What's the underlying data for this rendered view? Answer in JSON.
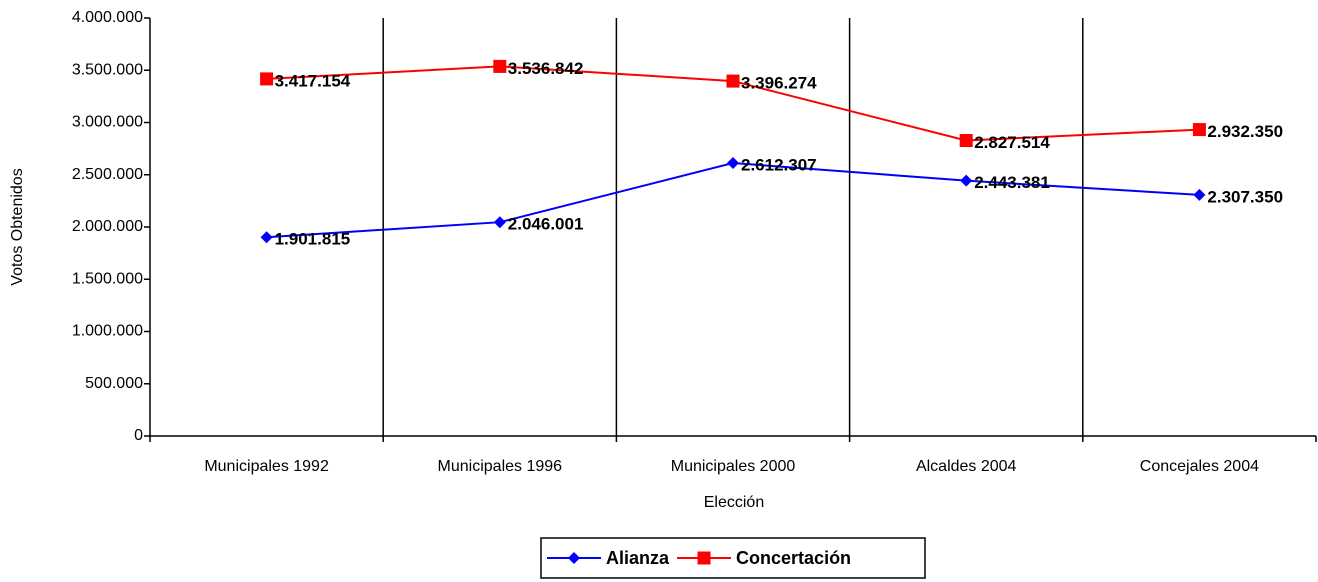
{
  "chart_data": {
    "type": "line",
    "x_label": "Elección",
    "y_label": "Votos Obtenidos",
    "categories": [
      "Municipales 1992",
      "Municipales 1996",
      "Municipales 2000",
      "Alcaldes 2004",
      "Concejales 2004"
    ],
    "series": [
      {
        "name": "Alianza",
        "color": "#0000ff",
        "marker": "diamond",
        "values": [
          1901815,
          2046001,
          2612307,
          2443381,
          2307350
        ],
        "value_labels": [
          "1.901.815",
          "2.046.001",
          "2.612.307",
          "2.443.381",
          "2.307.350"
        ]
      },
      {
        "name": "Concertación",
        "color": "#ff0000",
        "marker": "square",
        "values": [
          3417154,
          3536842,
          3396274,
          2827514,
          2932350
        ],
        "value_labels": [
          "3.417.154",
          "3.536.842",
          "3.396.274",
          "2.827.514",
          "2.932.350"
        ]
      }
    ],
    "ylim": [
      0,
      4000000
    ],
    "yticks": [
      0,
      {
        "value": 500000,
        "label": "500.000"
      },
      {
        "value": 1000000,
        "label": "1.000.000"
      },
      {
        "value": 1500000,
        "label": "1.500.000"
      },
      {
        "value": 2000000,
        "label": "2.000.000"
      },
      {
        "value": 2500000,
        "label": "2.500.000"
      },
      {
        "value": 3000000,
        "label": "3.000.000"
      },
      {
        "value": 3500000,
        "label": "3.500.000"
      },
      {
        "value": 4000000,
        "label": "4.000.000"
      }
    ],
    "legend": "bottom"
  }
}
